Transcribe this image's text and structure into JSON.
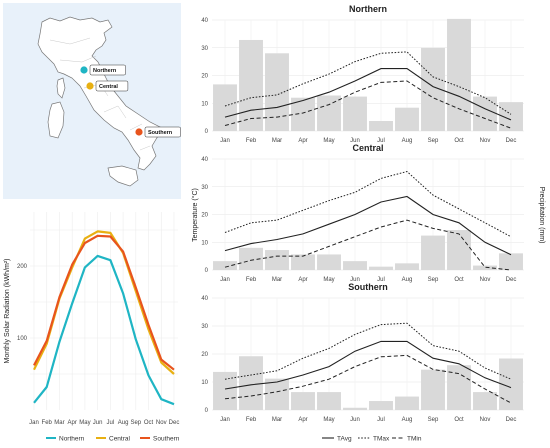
{
  "colors": {
    "map_bg": "#e8f1fa",
    "land": "#ffffff",
    "coast": "#777777",
    "northern": "#1fb5c4",
    "central": "#e8b012",
    "southern": "#e8541d",
    "precip_bar": "#d9d9d9",
    "temp_line": "#222222"
  },
  "map": {
    "markers": [
      {
        "label": "Northern",
        "color_key": "northern"
      },
      {
        "label": "Central",
        "color_key": "central"
      },
      {
        "label": "Southern",
        "color_key": "southern"
      }
    ]
  },
  "months": [
    "Jan",
    "Feb",
    "Mar",
    "Apr",
    "May",
    "Jun",
    "Jul",
    "Aug",
    "Sep",
    "Oct",
    "Nov",
    "Dec"
  ],
  "chart_data": [
    {
      "type": "line",
      "title": "",
      "ylabel": "Monthly Solar Radiation (kWh/m²)",
      "xlabel": "",
      "ylim": [
        0,
        275
      ],
      "yticks": [
        100,
        200
      ],
      "grid": true,
      "legend_position": "bottom",
      "series": [
        {
          "name": "Northern",
          "color_key": "northern",
          "values": [
            10,
            32,
            95,
            148,
            198,
            214,
            208,
            162,
            98,
            48,
            15,
            8
          ]
        },
        {
          "name": "Central",
          "color_key": "central",
          "values": [
            56,
            92,
            155,
            198,
            238,
            248,
            246,
            218,
            165,
            112,
            66,
            50
          ]
        },
        {
          "name": "Southern",
          "color_key": "southern",
          "values": [
            62,
            96,
            157,
            202,
            232,
            242,
            241,
            220,
            170,
            118,
            70,
            56
          ]
        }
      ]
    },
    {
      "type": "bar+line",
      "title": "Northern",
      "ylim_left": [
        0,
        40
      ],
      "ylim_right": [
        0,
        100
      ],
      "yticks_left": [
        0,
        10,
        20,
        30,
        40
      ],
      "grid": true,
      "precipitation_mm": [
        42,
        82,
        70,
        30,
        32,
        31,
        9,
        21,
        75,
        101,
        31,
        26
      ],
      "series": [
        {
          "name": "TAvg",
          "style": "solid",
          "values": [
            5,
            7.5,
            8.5,
            11,
            14,
            18,
            22.5,
            22.5,
            16,
            12.5,
            8,
            4
          ]
        },
        {
          "name": "TMax",
          "style": "dotted",
          "values": [
            9,
            12,
            13,
            17,
            20.5,
            25,
            28,
            28.5,
            19.5,
            16,
            12,
            6
          ]
        },
        {
          "name": "TMin",
          "style": "dashed",
          "values": [
            2,
            4.5,
            5,
            6.5,
            9.5,
            14,
            17.5,
            18,
            12,
            8,
            4.5,
            1
          ]
        }
      ]
    },
    {
      "type": "bar+line",
      "title": "Central",
      "ylim_left": [
        0,
        40
      ],
      "ylim_right": [
        0,
        100
      ],
      "yticks_left": [
        0,
        10,
        20,
        30,
        40
      ],
      "grid": true,
      "precipitation_mm": [
        8,
        20,
        18,
        14,
        14,
        8,
        3,
        6,
        31,
        36,
        4,
        15
      ],
      "series": [
        {
          "name": "TAvg",
          "style": "solid",
          "values": [
            7,
            9.5,
            11,
            13,
            16.5,
            20,
            24.5,
            26.5,
            20,
            17,
            10,
            5.5
          ]
        },
        {
          "name": "TMax",
          "style": "dotted",
          "values": [
            13.5,
            17,
            18,
            21.5,
            25,
            28,
            33,
            35.5,
            27,
            22,
            17,
            12
          ]
        },
        {
          "name": "TMin",
          "style": "dashed",
          "values": [
            1,
            3.5,
            5,
            5,
            8.5,
            12,
            15.5,
            18,
            15,
            13,
            1,
            0
          ]
        }
      ]
    },
    {
      "type": "bar+line",
      "title": "Southern",
      "ylim_left": [
        0,
        40
      ],
      "ylim_right": [
        0,
        100
      ],
      "yticks_left": [
        0,
        10,
        20,
        30,
        40
      ],
      "grid": true,
      "precipitation_mm": [
        34,
        48,
        28,
        16,
        16,
        2,
        8,
        12,
        36,
        40,
        16,
        46
      ],
      "series": [
        {
          "name": "TAvg",
          "style": "solid",
          "values": [
            7.5,
            9,
            10,
            12.5,
            15.5,
            21,
            24.5,
            24.5,
            18.5,
            16.5,
            11.5,
            8
          ]
        },
        {
          "name": "TMax",
          "style": "dotted",
          "values": [
            11,
            12.5,
            14,
            18.5,
            22,
            27,
            30.5,
            31,
            23,
            21,
            15,
            11
          ]
        },
        {
          "name": "TMin",
          "style": "dashed",
          "values": [
            4,
            5,
            6.5,
            8.5,
            11,
            15.5,
            19,
            19.5,
            14.5,
            13,
            7.5,
            2.5
          ]
        }
      ]
    }
  ],
  "shared_axes": {
    "left_label": "Temperature (°C)",
    "right_label": "Precipitation (mm)"
  },
  "legends": {
    "solar": [
      "Northern",
      "Central",
      "Southern"
    ],
    "temperature": [
      "TAvg",
      "TMax",
      "TMin"
    ]
  }
}
